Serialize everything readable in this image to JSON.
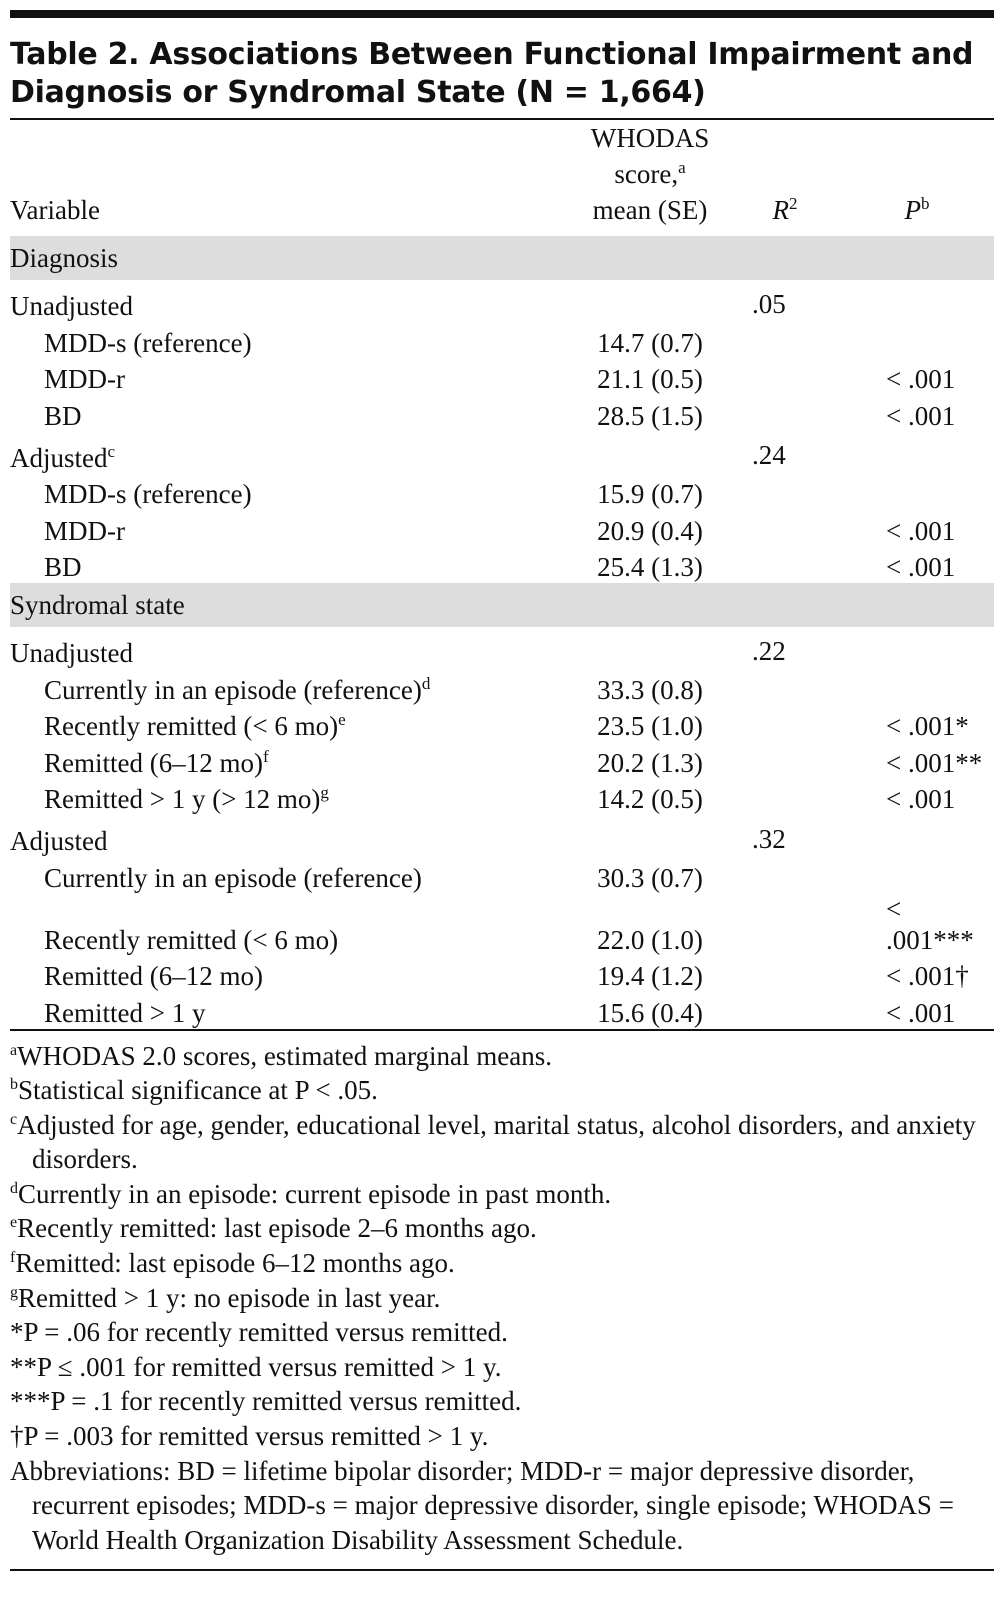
{
  "title": "Table 2. Associations Between Functional Impairment and Diagnosis or Syndromal State (N = 1,664)",
  "header": {
    "variable": "Variable",
    "whodas_line1": "WHODAS",
    "whodas_line2": "score,",
    "whodas_line2_sup": "a",
    "whodas_line3": "mean (SE)",
    "r2": "R",
    "r2_sup": "2",
    "p": "P",
    "p_sup": "b"
  },
  "sections": [
    {
      "label": "Diagnosis",
      "groups": [
        {
          "label": "Unadjusted",
          "label_sup": "",
          "r2": ".05",
          "rows": [
            {
              "label": "MDD-s (reference)",
              "sup": "",
              "score": "14.7 (0.7)",
              "p": ""
            },
            {
              "label": "MDD-r",
              "sup": "",
              "score": "21.1 (0.5)",
              "p": "< .001"
            },
            {
              "label": "BD",
              "sup": "",
              "score": "28.5 (1.5)",
              "p": "< .001"
            }
          ]
        },
        {
          "label": "Adjusted",
          "label_sup": "c",
          "r2": ".24",
          "rows": [
            {
              "label": "MDD-s (reference)",
              "sup": "",
              "score": "15.9 (0.7)",
              "p": ""
            },
            {
              "label": "MDD-r",
              "sup": "",
              "score": "20.9 (0.4)",
              "p": "< .001"
            },
            {
              "label": "BD",
              "sup": "",
              "score": "25.4 (1.3)",
              "p": "< .001"
            }
          ]
        }
      ]
    },
    {
      "label": "Syndromal state",
      "groups": [
        {
          "label": "Unadjusted",
          "label_sup": "",
          "r2": ".22",
          "rows": [
            {
              "label": "Currently in an episode (reference)",
              "sup": "d",
              "score": "33.3 (0.8)",
              "p": ""
            },
            {
              "label": "Recently remitted (< 6 mo)",
              "sup": "e",
              "score": "23.5 (1.0)",
              "p": "< .001*"
            },
            {
              "label": "Remitted (6–12 mo)",
              "sup": "f",
              "score": "20.2 (1.3)",
              "p": "< .001**"
            },
            {
              "label": "Remitted > 1 y (> 12 mo)",
              "sup": "g",
              "score": "14.2 (0.5)",
              "p": "< .001"
            }
          ]
        },
        {
          "label": "Adjusted",
          "label_sup": "",
          "r2": ".32",
          "rows": [
            {
              "label": "Currently in an episode (reference)",
              "sup": "",
              "score": "30.3 (0.7)",
              "p": ""
            },
            {
              "label": "Recently remitted (< 6 mo)",
              "sup": "",
              "score": "22.0 (1.0)",
              "p": "< .001***"
            },
            {
              "label": "Remitted (6–12 mo)",
              "sup": "",
              "score": "19.4 (1.2)",
              "p": "< .001†"
            },
            {
              "label": "Remitted > 1 y",
              "sup": "",
              "score": "15.6 (0.4)",
              "p": "< .001"
            }
          ]
        }
      ]
    }
  ],
  "footnotes": [
    {
      "mark": "a",
      "text": "WHODAS 2.0 scores, estimated marginal means."
    },
    {
      "mark": "b",
      "text": "Statistical significance at P < .05."
    },
    {
      "mark": "c",
      "text": "Adjusted for age, gender, educational level, marital status, alcohol disorders, and anxiety disorders."
    },
    {
      "mark": "d",
      "text": "Currently in an episode: current episode in past month."
    },
    {
      "mark": "e",
      "text": "Recently remitted: last episode 2–6 months ago."
    },
    {
      "mark": "f",
      "text": "Remitted: last episode 6–12 months ago."
    },
    {
      "mark": "g",
      "text": "Remitted > 1 y: no episode in last year."
    },
    {
      "mark": "",
      "text": "*P = .06 for recently remitted versus remitted."
    },
    {
      "mark": "",
      "text": "**P ≤ .001 for remitted versus remitted > 1 y."
    },
    {
      "mark": "",
      "text": "***P = .1 for recently remitted versus remitted."
    },
    {
      "mark": "",
      "text": "†P = .003 for remitted versus remitted > 1 y."
    },
    {
      "mark": "",
      "text": "Abbreviations: BD = lifetime bipolar disorder; MDD-r = major depressive disorder, recurrent episodes; MDD-s = major depressive disorder, single episode; WHODAS = World Health Organization Disability Assessment Schedule."
    }
  ]
}
